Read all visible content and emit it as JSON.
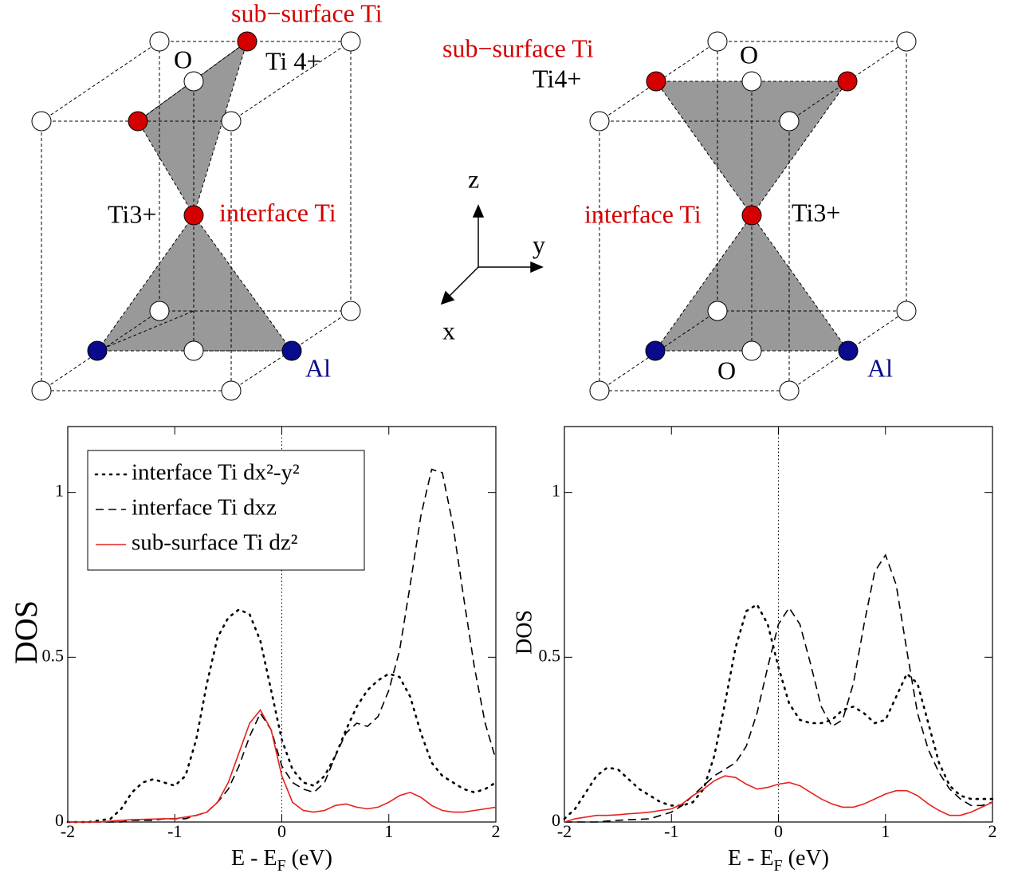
{
  "left_structure": {
    "labels": [
      "sub−surface Ti",
      "O",
      "Ti 4+",
      "Ti3+",
      "interface Ti",
      "Al"
    ]
  },
  "right_structure": {
    "labels": [
      "sub−surface Ti",
      "O",
      "Ti4+",
      "interface Ti",
      "Ti3+",
      "O",
      "Al"
    ]
  },
  "axes_legend": {
    "labels": [
      "z",
      "y",
      "x"
    ]
  },
  "chart_data": [
    {
      "type": "line",
      "x_label": [
        "E - E",
        "F",
        " (eV)"
      ],
      "y_label": "DOS",
      "xlim": [
        -2,
        2
      ],
      "xticks": [
        -2,
        -1,
        0,
        1,
        2
      ],
      "ylim": [
        0,
        1.2
      ],
      "yticks": [
        0,
        0.5,
        1
      ],
      "vline": 0,
      "legend": "upper left",
      "x": [
        -2,
        -1.9,
        -1.8,
        -1.7,
        -1.6,
        -1.5,
        -1.4,
        -1.3,
        -1.2,
        -1.1,
        -1,
        -0.9,
        -0.8,
        -0.7,
        -0.6,
        -0.5,
        -0.4,
        -0.3,
        -0.2,
        -0.1,
        0,
        0.1,
        0.2,
        0.3,
        0.4,
        0.5,
        0.6,
        0.7,
        0.8,
        0.9,
        1,
        1.1,
        1.2,
        1.3,
        1.4,
        1.5,
        1.6,
        1.7,
        1.8,
        1.9,
        2
      ],
      "series": [
        {
          "name": "interface Ti dx²-y²",
          "color": "#000000",
          "style": "dotted",
          "values": [
            0,
            0,
            0,
            0.005,
            0.01,
            0.04,
            0.09,
            0.12,
            0.13,
            0.12,
            0.11,
            0.14,
            0.25,
            0.42,
            0.56,
            0.62,
            0.645,
            0.63,
            0.55,
            0.4,
            0.25,
            0.16,
            0.12,
            0.11,
            0.14,
            0.2,
            0.28,
            0.35,
            0.4,
            0.43,
            0.45,
            0.44,
            0.38,
            0.27,
            0.18,
            0.14,
            0.12,
            0.1,
            0.09,
            0.1,
            0.12
          ]
        },
        {
          "name": "interface Ti dxz",
          "color": "#000000",
          "style": "dashed",
          "values": [
            0,
            0,
            0,
            0,
            0,
            0,
            0.005,
            0.005,
            0.005,
            0.01,
            0.01,
            0.01,
            0.02,
            0.03,
            0.06,
            0.1,
            0.17,
            0.26,
            0.33,
            0.28,
            0.17,
            0.12,
            0.1,
            0.09,
            0.12,
            0.2,
            0.27,
            0.3,
            0.29,
            0.32,
            0.4,
            0.52,
            0.72,
            0.93,
            1.07,
            1.06,
            0.9,
            0.68,
            0.47,
            0.3,
            0.19
          ]
        },
        {
          "name": "sub-surface Ti dz²",
          "color": "#e8201a",
          "style": "solid",
          "values": [
            0,
            0,
            0,
            0,
            0.003,
            0.005,
            0.007,
            0.008,
            0.009,
            0.01,
            0.01,
            0.015,
            0.02,
            0.03,
            0.06,
            0.12,
            0.21,
            0.3,
            0.34,
            0.28,
            0.14,
            0.06,
            0.035,
            0.03,
            0.035,
            0.05,
            0.055,
            0.045,
            0.04,
            0.045,
            0.06,
            0.08,
            0.09,
            0.075,
            0.05,
            0.035,
            0.03,
            0.03,
            0.035,
            0.04,
            0.045
          ]
        }
      ]
    },
    {
      "type": "line",
      "x_label": [
        "E - E",
        "F",
        " (eV)"
      ],
      "y_label": "DOS",
      "xlim": [
        -2,
        2
      ],
      "xticks": [
        -2,
        -1,
        0,
        1,
        2
      ],
      "ylim": [
        0,
        1.2
      ],
      "yticks": [
        0,
        0.5,
        1
      ],
      "vline": 0,
      "x": [
        -2,
        -1.9,
        -1.8,
        -1.7,
        -1.6,
        -1.5,
        -1.4,
        -1.3,
        -1.2,
        -1.1,
        -1,
        -0.9,
        -0.8,
        -0.7,
        -0.6,
        -0.5,
        -0.4,
        -0.3,
        -0.2,
        -0.1,
        0,
        0.1,
        0.2,
        0.3,
        0.4,
        0.5,
        0.6,
        0.7,
        0.8,
        0.9,
        1,
        1.1,
        1.2,
        1.3,
        1.4,
        1.5,
        1.6,
        1.7,
        1.8,
        1.9,
        2
      ],
      "series": [
        {
          "color": "#000000",
          "style": "dotted",
          "values": [
            0.01,
            0.04,
            0.09,
            0.14,
            0.165,
            0.16,
            0.13,
            0.1,
            0.08,
            0.06,
            0.05,
            0.05,
            0.06,
            0.1,
            0.2,
            0.36,
            0.53,
            0.64,
            0.66,
            0.6,
            0.47,
            0.36,
            0.31,
            0.3,
            0.3,
            0.31,
            0.34,
            0.35,
            0.33,
            0.3,
            0.31,
            0.38,
            0.45,
            0.42,
            0.3,
            0.18,
            0.11,
            0.08,
            0.07,
            0.07,
            0.07
          ]
        },
        {
          "color": "#000000",
          "style": "dashed",
          "values": [
            0,
            0,
            0,
            0,
            0.003,
            0.005,
            0.007,
            0.008,
            0.01,
            0.02,
            0.03,
            0.05,
            0.08,
            0.11,
            0.14,
            0.16,
            0.18,
            0.23,
            0.33,
            0.47,
            0.6,
            0.65,
            0.6,
            0.48,
            0.35,
            0.29,
            0.31,
            0.42,
            0.6,
            0.76,
            0.81,
            0.72,
            0.52,
            0.33,
            0.22,
            0.15,
            0.1,
            0.07,
            0.05,
            0.05,
            0.06
          ]
        },
        {
          "color": "#e8201a",
          "style": "solid",
          "values": [
            0,
            0.01,
            0.015,
            0.02,
            0.02,
            0.022,
            0.025,
            0.027,
            0.03,
            0.035,
            0.04,
            0.055,
            0.08,
            0.1,
            0.125,
            0.14,
            0.135,
            0.115,
            0.1,
            0.105,
            0.115,
            0.12,
            0.11,
            0.09,
            0.07,
            0.055,
            0.045,
            0.045,
            0.055,
            0.07,
            0.085,
            0.095,
            0.095,
            0.08,
            0.055,
            0.035,
            0.02,
            0.02,
            0.03,
            0.045,
            0.06
          ]
        }
      ]
    }
  ]
}
